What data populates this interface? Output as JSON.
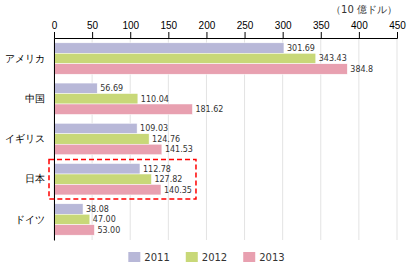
{
  "chart_data": {
    "type": "bar",
    "orientation": "horizontal",
    "xlabel": "（10 億ドル）",
    "categories": [
      "アメリカ",
      "中国",
      "イギリス",
      "日本",
      "ドイツ"
    ],
    "series": [
      {
        "name": "2011",
        "color": "#b8b8d8",
        "values": [
          301.69,
          56.69,
          109.03,
          112.78,
          38.08
        ],
        "value_labels": [
          "301.69",
          "56.69",
          "109.03",
          "112.78",
          "38.08"
        ]
      },
      {
        "name": "2012",
        "color": "#c8d878",
        "values": [
          343.43,
          110.04,
          124.76,
          127.82,
          47.0
        ],
        "value_labels": [
          "343.43",
          "110.04",
          "124.76",
          "127.82",
          "47.00"
        ]
      },
      {
        "name": "2013",
        "color": "#e8a0b0",
        "values": [
          384.8,
          181.62,
          141.53,
          140.35,
          53.0
        ],
        "value_labels": [
          "384.8",
          "181.62",
          "141.53",
          "140.35",
          "53.00"
        ]
      }
    ],
    "xlim": [
      0,
      450
    ],
    "xticks": [
      0,
      50,
      100,
      150,
      200,
      250,
      300,
      350,
      400,
      450
    ],
    "grid": true,
    "legend": "bottom",
    "data_labels": true,
    "annotations": [
      {
        "category": "日本",
        "color": "red",
        "line_style": "dashed"
      }
    ]
  }
}
